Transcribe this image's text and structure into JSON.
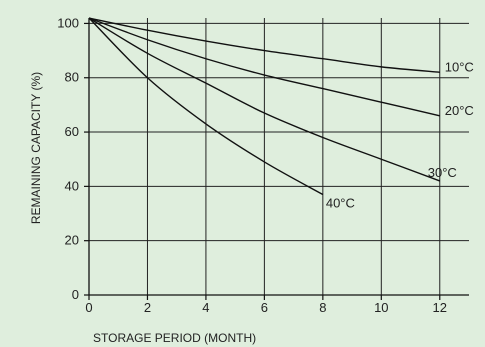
{
  "chart_data": {
    "type": "line",
    "xlabel": "STORAGE PERIOD (MONTH)",
    "ylabel": "REMAINING CAPACITY (%)",
    "xlim": [
      0,
      13
    ],
    "ylim": [
      0,
      102
    ],
    "x_ticks": [
      0,
      2,
      4,
      6,
      8,
      10,
      12
    ],
    "y_ticks": [
      0,
      20,
      40,
      60,
      80,
      100
    ],
    "grid": true,
    "background_color": "#dfeedd",
    "line_color": "#111111",
    "series": [
      {
        "name": "10°C",
        "x": [
          0,
          2,
          4,
          6,
          8,
          10,
          12
        ],
        "values": [
          102,
          97.5,
          93.5,
          90,
          87,
          84,
          82
        ]
      },
      {
        "name": "20°C",
        "x": [
          0,
          2,
          4,
          6,
          8,
          10,
          12
        ],
        "values": [
          102,
          94,
          87,
          81,
          76,
          71,
          66
        ]
      },
      {
        "name": "30°C",
        "x": [
          0,
          2,
          4,
          6,
          8,
          10,
          12
        ],
        "values": [
          102,
          89,
          78,
          67,
          58,
          50,
          42
        ]
      },
      {
        "name": "40°C",
        "x": [
          0,
          2,
          4,
          6,
          8
        ],
        "values": [
          102,
          80,
          63,
          49,
          37
        ]
      }
    ]
  }
}
